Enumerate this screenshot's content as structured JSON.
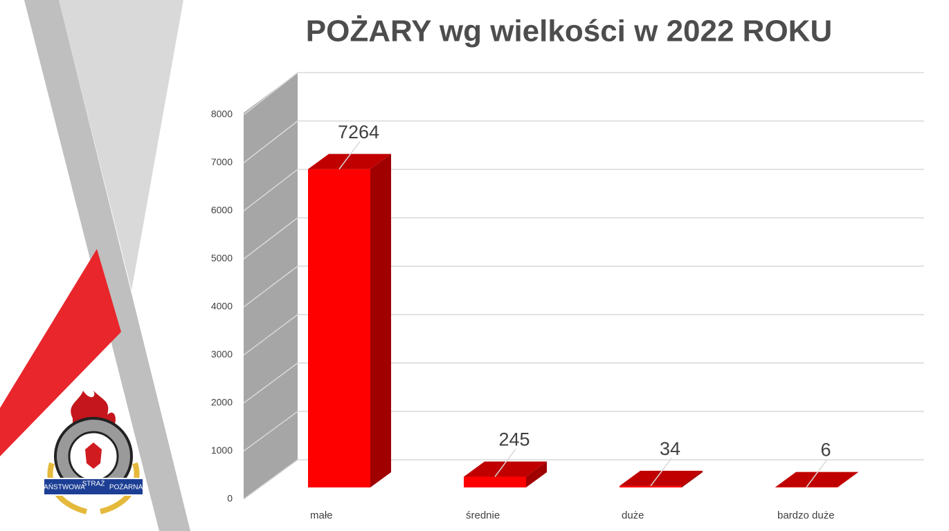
{
  "chart_data": {
    "type": "bar3d",
    "title": "POŻARY wg wielkości w 2022 ROKU",
    "categories": [
      "małe",
      "średnie",
      "duże",
      "bardzo duże"
    ],
    "values": [
      7264,
      245,
      34,
      6
    ],
    "color": "#ff0000",
    "ylim": [
      0,
      8000
    ],
    "yticks": [
      0,
      1000,
      2000,
      3000,
      4000,
      5000,
      6000,
      7000,
      8000
    ],
    "grid": true
  },
  "logo": {
    "words": [
      "PAŃSTWOWA",
      "STRAŻ",
      "POŻARNA"
    ]
  }
}
